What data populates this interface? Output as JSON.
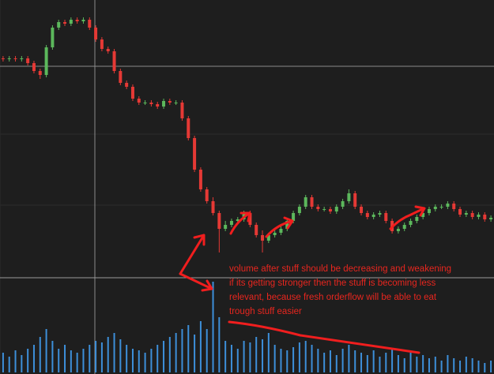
{
  "chart_data": {
    "type": "candlestick",
    "up_color": "#5cb85c",
    "down_color": "#e53935",
    "volume_color": "#3d8fd9",
    "ylim": [
      0,
      350
    ],
    "volume_ylim": [
      0,
      120
    ],
    "open": [
      276,
      275,
      276,
      275,
      276,
      270,
      260,
      255,
      290,
      315,
      322,
      320,
      325,
      323,
      325,
      315,
      300,
      288,
      285,
      260,
      245,
      240,
      225,
      220,
      220,
      218,
      215,
      222,
      220,
      220,
      200,
      175,
      135,
      110,
      95,
      80,
      60,
      65,
      70,
      72,
      80,
      65,
      52,
      45,
      52,
      55,
      60,
      70,
      80,
      88,
      100,
      88,
      85,
      85,
      82,
      88,
      95,
      105,
      88,
      80,
      75,
      78,
      80,
      70,
      57,
      60,
      65,
      70,
      75,
      80,
      85,
      88,
      88,
      92,
      85,
      78,
      80,
      75,
      78,
      72
    ],
    "high": [
      279,
      279,
      279,
      279,
      279,
      273,
      263,
      293,
      318,
      325,
      325,
      328,
      328,
      328,
      328,
      318,
      303,
      291,
      288,
      263,
      248,
      243,
      228,
      223,
      223,
      221,
      225,
      225,
      223,
      223,
      203,
      178,
      138,
      113,
      100,
      83,
      70,
      73,
      75,
      83,
      83,
      68,
      58,
      55,
      58,
      63,
      73,
      83,
      91,
      103,
      103,
      91,
      88,
      88,
      91,
      98,
      110,
      108,
      91,
      83,
      81,
      83,
      83,
      73,
      63,
      68,
      73,
      78,
      83,
      88,
      91,
      91,
      95,
      95,
      88,
      83,
      83,
      81,
      81,
      77
    ],
    "low": [
      272,
      272,
      272,
      272,
      267,
      257,
      250,
      252,
      287,
      312,
      317,
      317,
      320,
      320,
      312,
      297,
      285,
      282,
      257,
      242,
      237,
      222,
      217,
      217,
      215,
      212,
      212,
      217,
      217,
      197,
      172,
      132,
      107,
      92,
      77,
      30,
      57,
      62,
      67,
      69,
      62,
      49,
      30,
      42,
      49,
      52,
      57,
      67,
      77,
      85,
      85,
      82,
      82,
      79,
      79,
      85,
      92,
      85,
      77,
      72,
      72,
      75,
      67,
      54,
      54,
      57,
      62,
      67,
      72,
      77,
      82,
      85,
      85,
      82,
      75,
      75,
      72,
      72,
      69,
      69
    ],
    "close": [
      275,
      276,
      275,
      276,
      270,
      260,
      255,
      290,
      315,
      322,
      320,
      325,
      323,
      325,
      315,
      300,
      288,
      285,
      260,
      245,
      240,
      225,
      220,
      220,
      218,
      215,
      222,
      220,
      220,
      200,
      175,
      135,
      110,
      95,
      80,
      60,
      65,
      70,
      72,
      80,
      65,
      52,
      45,
      52,
      55,
      60,
      70,
      80,
      88,
      100,
      88,
      85,
      85,
      82,
      88,
      95,
      105,
      88,
      80,
      75,
      78,
      80,
      70,
      57,
      60,
      65,
      70,
      75,
      80,
      85,
      88,
      88,
      92,
      85,
      78,
      80,
      75,
      78,
      72,
      74
    ],
    "volume": [
      25,
      20,
      28,
      22,
      30,
      35,
      45,
      55,
      40,
      30,
      35,
      28,
      25,
      30,
      35,
      40,
      38,
      45,
      50,
      42,
      35,
      30,
      28,
      25,
      30,
      35,
      40,
      45,
      50,
      55,
      60,
      48,
      65,
      55,
      115,
      70,
      40,
      35,
      30,
      40,
      38,
      45,
      42,
      50,
      35,
      30,
      28,
      32,
      38,
      40,
      35,
      30,
      25,
      28,
      22,
      30,
      35,
      28,
      25,
      22,
      28,
      20,
      25,
      30,
      22,
      18,
      25,
      20,
      22,
      18,
      20,
      15,
      22,
      18,
      15,
      20,
      18,
      15,
      12,
      15
    ],
    "annotation": [
      "volume after stuff should be decreasing and weakening",
      "if its getting stronger then the stuff is becoming less",
      "relevant, because fresh orderflow will be able to eat",
      "trough stuff easier"
    ]
  }
}
